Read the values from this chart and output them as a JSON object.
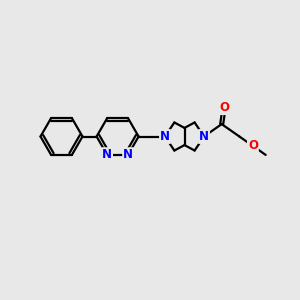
{
  "bg_color": "#e8e8e8",
  "bond_color": "#000000",
  "N_color": "#0000ff",
  "O_color": "#ff0000",
  "bond_width": 1.6,
  "font_size": 8.5,
  "fig_width": 3.0,
  "fig_height": 3.0,
  "dpi": 100,
  "xlim": [
    0,
    10
  ],
  "ylim": [
    0,
    10
  ]
}
